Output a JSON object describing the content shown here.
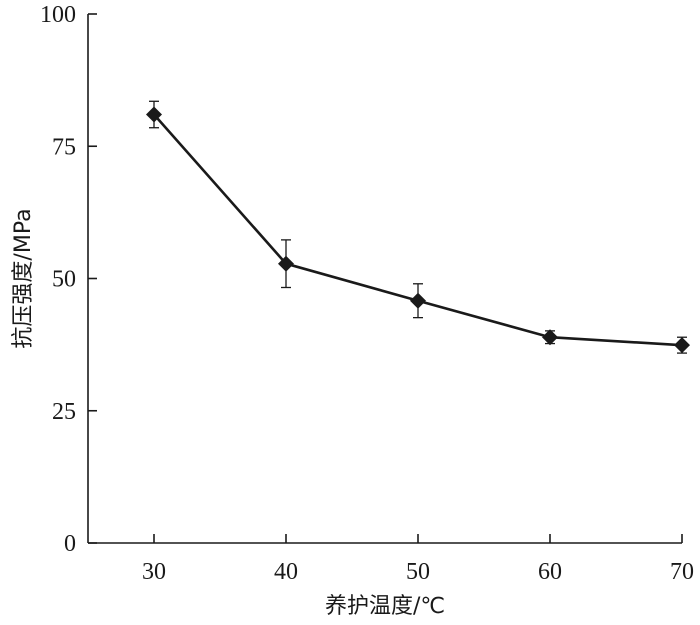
{
  "chart_data": {
    "type": "line",
    "title": "",
    "xlabel": "养护温度/℃",
    "ylabel": "抗压强度/MPa",
    "x": [
      30,
      40,
      50,
      60,
      70
    ],
    "xticks": [
      "30",
      "40",
      "50",
      "60",
      "70"
    ],
    "xlim": [
      25,
      70
    ],
    "ylim": [
      0,
      100
    ],
    "yticks": [
      "0",
      "25",
      "50",
      "75",
      "100"
    ],
    "series": [
      {
        "values": [
          81,
          52.8,
          45.8,
          38.9,
          37.4
        ],
        "error": [
          2.5,
          4.5,
          3.2,
          1.2,
          1.5
        ],
        "marker": "diamond",
        "color": "#1a1a1a"
      }
    ],
    "grid": false,
    "legend": "none"
  }
}
